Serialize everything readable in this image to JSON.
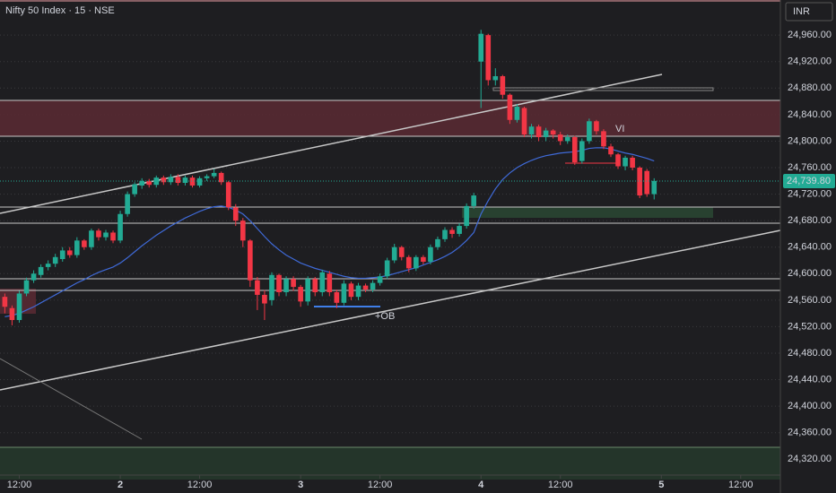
{
  "chart_data": {
    "type": "candlestick",
    "title": "Nifty 50 Index · 15 · NSE",
    "currency": "INR",
    "up_color": "#22ab94",
    "down_color": "#f23645",
    "x": [
      9,
      10,
      11,
      12,
      13,
      14,
      15,
      16,
      17,
      18,
      19,
      20,
      21,
      22,
      23,
      24,
      25,
      26,
      27,
      28,
      29,
      30,
      31,
      32,
      33,
      34,
      35,
      36,
      37,
      38,
      39,
      40,
      41,
      42,
      43,
      44,
      45,
      46,
      47,
      48,
      49,
      50,
      51,
      52,
      53,
      54,
      55,
      56,
      57,
      58,
      59,
      60,
      61,
      62,
      63,
      64,
      65,
      66,
      67,
      68,
      69,
      70,
      71,
      72,
      73,
      74,
      75,
      76,
      77,
      78,
      79,
      80,
      81,
      82,
      83,
      84,
      85,
      86,
      87,
      88,
      89,
      90,
      91,
      92,
      93,
      94,
      95,
      96,
      97,
      98,
      99
    ],
    "open": [
      24565,
      24548,
      24530,
      24570,
      24590,
      24598,
      24610,
      24615,
      24622,
      24635,
      24628,
      24650,
      24640,
      24665,
      24655,
      24662,
      24650,
      24690,
      24720,
      24733,
      24740,
      24734,
      24745,
      24738,
      24746,
      24737,
      24745,
      24733,
      24744,
      24747,
      24752,
      24738,
      24700,
      24680,
      24650,
      24590,
      24568,
      24560,
      24598,
      24572,
      24592,
      24580,
      24558,
      24592,
      24572,
      24600,
      24572,
      24556,
      24585,
      24565,
      24582,
      24576,
      24586,
      24596,
      24620,
      24640,
      24625,
      24608,
      24625,
      24618,
      24640,
      24652,
      24666,
      24660,
      24672,
      24702,
      24920,
      24960,
      24892,
      24898,
      24870,
      24832,
      24850,
      24810,
      24822,
      24806,
      24816,
      24810,
      24800,
      24806,
      24770,
      24800,
      24830,
      24815,
      24792,
      24780,
      24762,
      24775,
      24760,
      24755,
      24720
    ],
    "high": [
      24570,
      24552,
      24574,
      24594,
      24605,
      24614,
      24620,
      24630,
      24640,
      24640,
      24655,
      24652,
      24668,
      24668,
      24666,
      24665,
      24695,
      24724,
      24738,
      24744,
      24743,
      24748,
      24748,
      24750,
      24750,
      24748,
      24748,
      24747,
      24750,
      24758,
      24754,
      24740,
      24705,
      24684,
      24652,
      24595,
      24575,
      24602,
      24600,
      24596,
      24596,
      24583,
      24596,
      24595,
      24606,
      24604,
      24576,
      24590,
      24588,
      24586,
      24585,
      24590,
      24600,
      24624,
      24645,
      24642,
      24628,
      24628,
      24628,
      24644,
      24656,
      24670,
      24670,
      24676,
      24706,
      24722,
      24968,
      24962,
      24910,
      24900,
      24872,
      24856,
      24852,
      24826,
      24825,
      24820,
      24818,
      24814,
      24810,
      24808,
      24804,
      24834,
      24832,
      24818,
      24796,
      24782,
      24778,
      24778,
      24762,
      24758,
      24744
    ],
    "low": [
      24540,
      24522,
      24526,
      24566,
      24586,
      24594,
      24605,
      24610,
      24618,
      24624,
      24624,
      24636,
      24636,
      24650,
      24650,
      24646,
      24646,
      24686,
      24716,
      24728,
      24730,
      24730,
      24734,
      24734,
      24733,
      24733,
      24730,
      24730,
      24740,
      24744,
      24734,
      24696,
      24672,
      24640,
      24580,
      24545,
      24530,
      24552,
      24566,
      24566,
      24574,
      24550,
      24552,
      24566,
      24566,
      24566,
      24548,
      24552,
      24560,
      24560,
      24572,
      24572,
      24582,
      24592,
      24616,
      24620,
      24602,
      24604,
      24614,
      24614,
      24636,
      24648,
      24654,
      24656,
      24668,
      24698,
      24850,
      24884,
      24884,
      24864,
      24826,
      24828,
      24806,
      24804,
      24800,
      24800,
      24804,
      24794,
      24796,
      24764,
      24766,
      24796,
      24810,
      24788,
      24776,
      24758,
      24756,
      24756,
      24714,
      24716,
      24712
    ],
    "close": [
      24550,
      24530,
      24570,
      24590,
      24600,
      24610,
      24615,
      24625,
      24635,
      24628,
      24650,
      24640,
      24665,
      24655,
      24662,
      24650,
      24690,
      24720,
      24735,
      24740,
      24734,
      24745,
      24738,
      24746,
      24737,
      24745,
      24733,
      24744,
      24747,
      24752,
      24738,
      24700,
      24680,
      24650,
      24590,
      24568,
      24555,
      24598,
      24572,
      24592,
      24580,
      24558,
      24592,
      24572,
      24602,
      24572,
      24556,
      24585,
      24565,
      24582,
      24576,
      24586,
      24596,
      24620,
      24640,
      24625,
      24608,
      24625,
      24618,
      24640,
      24652,
      24666,
      24660,
      24672,
      24702,
      24718,
      24962,
      24892,
      24898,
      24870,
      24832,
      24852,
      24810,
      24822,
      24806,
      24816,
      24810,
      24800,
      24806,
      24768,
      24800,
      24830,
      24815,
      24792,
      24780,
      24762,
      24775,
      24760,
      24718,
      24720,
      24740
    ],
    "ma": {
      "color": "#3f6ad8",
      "values": [
        24535,
        24537,
        24540,
        24545,
        24550,
        24556,
        24562,
        24568,
        24574,
        24580,
        24586,
        24591,
        24597,
        24602,
        24606,
        24610,
        24616,
        24624,
        24633,
        24642,
        24650,
        24658,
        24665,
        24672,
        24678,
        24684,
        24689,
        24694,
        24698,
        24701,
        24702,
        24700,
        24696,
        24690,
        24680,
        24668,
        24656,
        24645,
        24636,
        24628,
        24622,
        24616,
        24612,
        24608,
        24605,
        24602,
        24599,
        24596,
        24594,
        24593,
        24593,
        24594,
        24595,
        24597,
        24600,
        24603,
        24606,
        24609,
        24613,
        24617,
        24621,
        24626,
        24632,
        24640,
        24650,
        24662,
        24690,
        24710,
        24728,
        24742,
        24752,
        24760,
        24766,
        24771,
        24775,
        24778,
        24780,
        24782,
        24783,
        24784,
        24786,
        24789,
        24790,
        24790,
        24788,
        24785,
        24782,
        24780,
        24777,
        24774,
        24770
      ]
    },
    "last_price": {
      "value": 24739.8,
      "label": "24,739.80"
    },
    "annotations": [
      "+OB",
      "VI"
    ],
    "xlim": [
      8.33,
      116.5
    ],
    "xticks": [
      {
        "value": 11,
        "label": "12:00"
      },
      {
        "value": 25,
        "label": "2"
      },
      {
        "value": 36,
        "label": "12:00"
      },
      {
        "value": 50,
        "label": "3"
      },
      {
        "value": 61,
        "label": "12:00"
      },
      {
        "value": 75,
        "label": "4"
      },
      {
        "value": 86,
        "label": "12:00"
      },
      {
        "value": 100,
        "label": "5"
      },
      {
        "value": 111,
        "label": "12:00"
      }
    ],
    "ylim": [
      24296,
      25013
    ],
    "yticks": [
      {
        "value": 24320,
        "label": "24,320.00"
      },
      {
        "value": 24360,
        "label": "24,360.00"
      },
      {
        "value": 24400,
        "label": "24,400.00"
      },
      {
        "value": 24440,
        "label": "24,440.00"
      },
      {
        "value": 24480,
        "label": "24,480.00"
      },
      {
        "value": 24520,
        "label": "24,520.00"
      },
      {
        "value": 24560,
        "label": "24,560.00"
      },
      {
        "value": 24600,
        "label": "24,600.00"
      },
      {
        "value": 24640,
        "label": "24,640.00"
      },
      {
        "value": 24680,
        "label": "24,680.00"
      },
      {
        "value": 24720,
        "label": "24,720.00"
      },
      {
        "value": 24760,
        "label": "24,760.00"
      },
      {
        "value": 24800,
        "label": "24,800.00"
      },
      {
        "value": 24840,
        "label": "24,840.00"
      },
      {
        "value": 24880,
        "label": "24,880.00"
      },
      {
        "value": 24920,
        "label": "24,920.00"
      },
      {
        "value": 24960,
        "label": "24,960.00"
      }
    ],
    "grid": true
  }
}
